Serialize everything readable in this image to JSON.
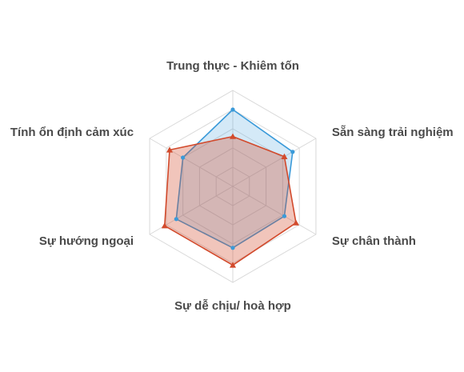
{
  "chart_data": {
    "type": "radar",
    "title": "",
    "axes": [
      "Trung thực - Khiêm tốn",
      "Sẵn sàng trải nghiệm",
      "Sự chân thành",
      "Sự dễ chịu/ hoà hợp",
      "Sự hướng ngoại",
      "Tính ổn định cảm xúc"
    ],
    "range": [
      0,
      5
    ],
    "rings": 5,
    "grid": true,
    "legend": "none",
    "series": [
      {
        "color": "#3a9ad9",
        "fill": "rgba(58,154,217,0.22)",
        "values": [
          4.0,
          3.6,
          3.1,
          3.2,
          3.4,
          3.0
        ]
      },
      {
        "color": "#d24a2c",
        "fill": "rgba(210,74,44,0.32)",
        "values": [
          2.6,
          3.1,
          3.8,
          4.1,
          4.1,
          3.8
        ]
      }
    ]
  }
}
